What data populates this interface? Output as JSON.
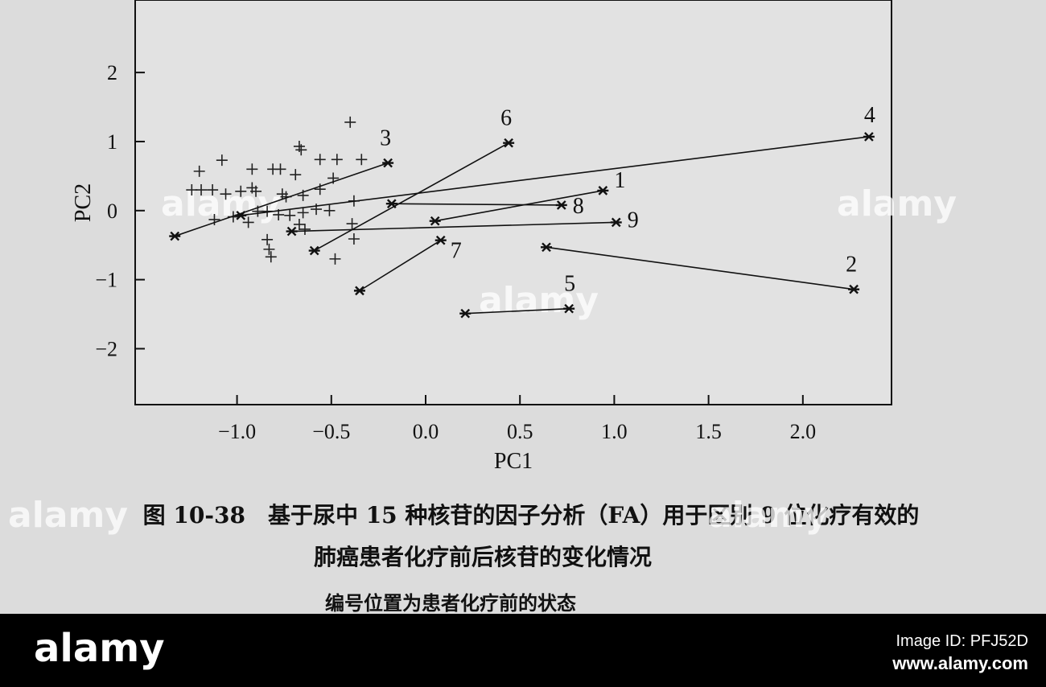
{
  "chart_data": {
    "type": "scatter",
    "xlabel": "PC1",
    "ylabel": "PC2",
    "xlim": [
      -1.54,
      2.47
    ],
    "ylim": [
      -2.81,
      3.05
    ],
    "xticks": [
      {
        "value": -1,
        "label": "−1.0"
      },
      {
        "value": -0.5,
        "label": "−0.5"
      },
      {
        "value": 0,
        "label": "0.0"
      },
      0.5,
      {
        "value": 1,
        "label": "1.0"
      },
      1.5,
      {
        "value": 2,
        "label": "2.0"
      }
    ],
    "yticks": [
      {
        "value": -2,
        "label": "−2"
      },
      {
        "value": -1,
        "label": "−1"
      },
      0,
      1,
      2
    ],
    "points": {
      "x": [
        -1.2,
        -1.08,
        -0.92,
        -0.81,
        -0.77,
        -0.69,
        -0.67,
        -0.66,
        -0.56,
        -0.47,
        -0.4,
        -0.34,
        -1.24,
        -1.19,
        -1.13,
        -1.06,
        -0.98,
        -0.92,
        -0.9,
        -0.76,
        -0.74,
        -0.65,
        -0.56,
        -0.49,
        -0.38,
        -1.12,
        -1.02,
        -0.89,
        -0.84,
        -0.78,
        -0.72,
        -0.65,
        -0.58,
        -0.51,
        -0.39,
        -0.38,
        -0.84,
        -0.83,
        -0.67,
        -0.64,
        -0.82,
        -0.48,
        -0.94
      ],
      "y": [
        0.57,
        0.73,
        0.6,
        0.6,
        0.6,
        0.52,
        0.93,
        0.88,
        0.74,
        0.74,
        1.28,
        0.74,
        0.3,
        0.3,
        0.3,
        0.24,
        0.28,
        0.33,
        0.28,
        0.24,
        0.2,
        0.22,
        0.31,
        0.47,
        0.14,
        -0.13,
        -0.09,
        -0.01,
        -0.01,
        -0.06,
        -0.07,
        -0.03,
        0.02,
        0.0,
        -0.19,
        -0.41,
        -0.42,
        -0.56,
        -0.2,
        -0.27,
        -0.67,
        -0.7,
        -0.17
      ]
    },
    "patients": [
      {
        "label": "1",
        "x": [
          0.94,
          0.05
        ],
        "y": [
          0.29,
          -0.15
        ]
      },
      {
        "label": "2",
        "x": [
          2.27,
          0.64
        ],
        "y": [
          -1.14,
          -0.53
        ]
      },
      {
        "label": "3",
        "x": [
          -0.2,
          -1.33
        ],
        "y": [
          0.69,
          -0.37
        ]
      },
      {
        "label": "4",
        "x": [
          2.35,
          -0.98
        ],
        "y": [
          1.07,
          -0.07
        ]
      },
      {
        "label": "5",
        "x": [
          0.76,
          0.21
        ],
        "y": [
          -1.42,
          -1.49
        ]
      },
      {
        "label": "6",
        "x": [
          0.44,
          -0.59
        ],
        "y": [
          0.98,
          -0.58
        ]
      },
      {
        "label": "7",
        "x": [
          0.08,
          -0.35
        ],
        "y": [
          -0.43,
          -1.16
        ]
      },
      {
        "label": "8",
        "x": [
          0.72,
          -0.18
        ],
        "y": [
          0.08,
          0.1
        ]
      },
      {
        "label": "9",
        "x": [
          1.01,
          -0.71
        ],
        "y": [
          -0.17,
          -0.3
        ]
      }
    ]
  },
  "caption": [
    "图 10-38　基于尿中 15 种核苷的因子分析（FA）用于区别 9 位化疗有效的",
    "肺癌患者化疗前后核苷的变化情况",
    "编号位置为患者化疗前的状态"
  ],
  "watermark": "alamy",
  "footer": {
    "logo": "alamy",
    "image_id": "Image ID: PFJ52D",
    "url": "www.alamy.com"
  }
}
